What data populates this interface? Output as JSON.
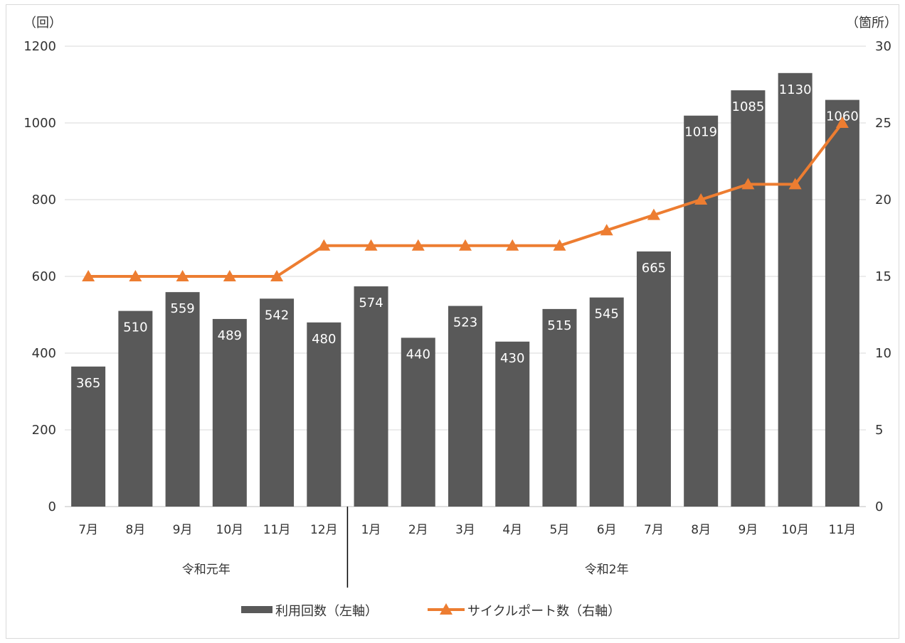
{
  "chart_data": {
    "type": "bar",
    "categories": [
      "7月",
      "8月",
      "9月",
      "10月",
      "11月",
      "12月",
      "1月",
      "2月",
      "3月",
      "4月",
      "5月",
      "6月",
      "7月",
      "8月",
      "9月",
      "10月",
      "11月"
    ],
    "groups": [
      {
        "label": "令和元年",
        "count": 6
      },
      {
        "label": "令和2年",
        "count": 11
      }
    ],
    "series": [
      {
        "name": "利用回数（左軸）",
        "type": "bar",
        "axis": "left",
        "color": "#595959",
        "values": [
          365,
          510,
          559,
          489,
          542,
          480,
          574,
          440,
          523,
          430,
          515,
          545,
          665,
          1019,
          1085,
          1130,
          1060
        ]
      },
      {
        "name": "サイクルポート数（右軸）",
        "type": "line",
        "axis": "right",
        "color": "#ed7d31",
        "marker": "triangle",
        "values": [
          15,
          15,
          15,
          15,
          15,
          17,
          17,
          17,
          17,
          17,
          17,
          18,
          19,
          20,
          21,
          21,
          25
        ]
      }
    ],
    "left_axis": {
      "unit": "（回）",
      "ylim": [
        0,
        1200
      ],
      "ticks": [
        0,
        200,
        400,
        600,
        800,
        1000,
        1200
      ]
    },
    "right_axis": {
      "unit": "（箇所）",
      "ylim": [
        0,
        30
      ],
      "ticks": [
        0,
        5,
        10,
        15,
        20,
        25,
        30
      ]
    },
    "grid": true,
    "legend_position": "bottom"
  }
}
